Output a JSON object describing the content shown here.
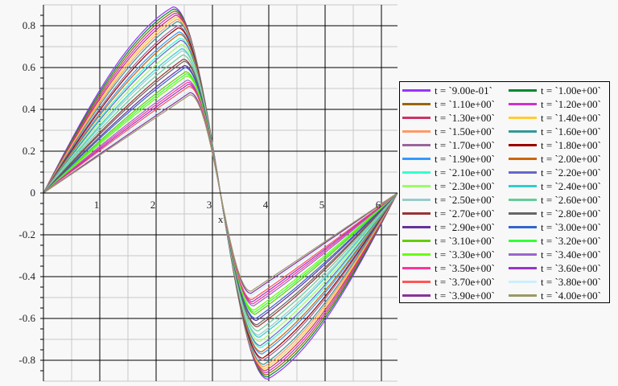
{
  "chart_data": {
    "type": "line",
    "title": "",
    "xlabel": "x",
    "ylabel": "",
    "xlim": [
      0,
      6.2832
    ],
    "ylim": [
      -0.9,
      0.9
    ],
    "grid": true,
    "legend_position": "right",
    "x_ticks": [
      "1",
      "2",
      "3",
      "4",
      "5",
      "6"
    ],
    "x_tick_values": [
      1,
      2,
      3,
      4,
      5,
      6
    ],
    "y_ticks": [
      "0.8",
      "0.6",
      "0.4",
      "0.2",
      "0",
      "-0.2",
      "-0.4",
      "-0.6",
      "-0.8"
    ],
    "y_tick_values": [
      0.8,
      0.6,
      0.4,
      0.2,
      0,
      -0.2,
      -0.4,
      -0.6,
      -0.8
    ],
    "series": [
      {
        "name": "t = `9.00e-01`",
        "color": "#9933ff",
        "peak_y": 0.89,
        "peak_x": 2.3
      },
      {
        "name": "t = `1.00e+00`",
        "color": "#008833",
        "peak_y": 0.88,
        "peak_x": 2.31
      },
      {
        "name": "t = `1.10e+00`",
        "color": "#996600",
        "peak_y": 0.87,
        "peak_x": 2.32
      },
      {
        "name": "t = `1.20e+00`",
        "color": "#cc33cc",
        "peak_y": 0.86,
        "peak_x": 2.33
      },
      {
        "name": "t = `1.30e+00`",
        "color": "#cc3366",
        "peak_y": 0.85,
        "peak_x": 2.34
      },
      {
        "name": "t = `1.40e+00`",
        "color": "#ffcc33",
        "peak_y": 0.84,
        "peak_x": 2.35
      },
      {
        "name": "t = `1.50e+00`",
        "color": "#ff9966",
        "peak_y": 0.83,
        "peak_x": 2.36
      },
      {
        "name": "t = `1.60e+00`",
        "color": "#339999",
        "peak_y": 0.82,
        "peak_x": 2.37
      },
      {
        "name": "t = `1.70e+00`",
        "color": "#996699",
        "peak_y": 0.8,
        "peak_x": 2.38
      },
      {
        "name": "t = `1.80e+00`",
        "color": "#990000",
        "peak_y": 0.79,
        "peak_x": 2.39
      },
      {
        "name": "t = `1.90e+00`",
        "color": "#3399ff",
        "peak_y": 0.77,
        "peak_x": 2.4
      },
      {
        "name": "t = `2.00e+00`",
        "color": "#cc6600",
        "peak_y": 0.76,
        "peak_x": 2.41
      },
      {
        "name": "t = `2.10e+00`",
        "color": "#33ffcc",
        "peak_y": 0.74,
        "peak_x": 2.42
      },
      {
        "name": "t = `2.20e+00`",
        "color": "#6666cc",
        "peak_y": 0.73,
        "peak_x": 2.43
      },
      {
        "name": "t = `2.30e+00`",
        "color": "#99ff66",
        "peak_y": 0.71,
        "peak_x": 2.44
      },
      {
        "name": "t = `2.40e+00`",
        "color": "#33cccc",
        "peak_y": 0.69,
        "peak_x": 2.45
      },
      {
        "name": "t = `2.50e+00`",
        "color": "#99cccc",
        "peak_y": 0.68,
        "peak_x": 2.46
      },
      {
        "name": "t = `2.60e+00`",
        "color": "#66cc99",
        "peak_y": 0.66,
        "peak_x": 2.47
      },
      {
        "name": "t = `2.70e+00`",
        "color": "#993333",
        "peak_y": 0.64,
        "peak_x": 2.48
      },
      {
        "name": "t = `2.80e+00`",
        "color": "#666666",
        "peak_y": 0.63,
        "peak_x": 2.49
      },
      {
        "name": "t = `2.90e+00`",
        "color": "#663399",
        "peak_y": 0.61,
        "peak_x": 2.5
      },
      {
        "name": "t = `3.00e+00`",
        "color": "#3366cc",
        "peak_y": 0.6,
        "peak_x": 2.51
      },
      {
        "name": "t = `3.10e+00`",
        "color": "#66cc00",
        "peak_y": 0.58,
        "peak_x": 2.52
      },
      {
        "name": "t = `3.20e+00`",
        "color": "#33ff33",
        "peak_y": 0.57,
        "peak_x": 2.53
      },
      {
        "name": "t = `3.30e+00`",
        "color": "#66ff00",
        "peak_y": 0.56,
        "peak_x": 2.54
      },
      {
        "name": "t = `3.40e+00`",
        "color": "#9966cc",
        "peak_y": 0.54,
        "peak_x": 2.55
      },
      {
        "name": "t = `3.50e+00`",
        "color": "#ff3399",
        "peak_y": 0.53,
        "peak_x": 2.56
      },
      {
        "name": "t = `3.60e+00`",
        "color": "#9933cc",
        "peak_y": 0.52,
        "peak_x": 2.57
      },
      {
        "name": "t = `3.70e+00`",
        "color": "#ff5555",
        "peak_y": 0.51,
        "peak_x": 2.58
      },
      {
        "name": "t = `3.80e+00`",
        "color": "#cceeff",
        "peak_y": 0.49,
        "peak_x": 2.59
      },
      {
        "name": "t = `3.90e+00`",
        "color": "#883399",
        "peak_y": 0.48,
        "peak_x": 2.6
      },
      {
        "name": "t = `4.00e+00`",
        "color": "#999966",
        "peak_y": 0.47,
        "peak_x": 2.6
      }
    ]
  }
}
